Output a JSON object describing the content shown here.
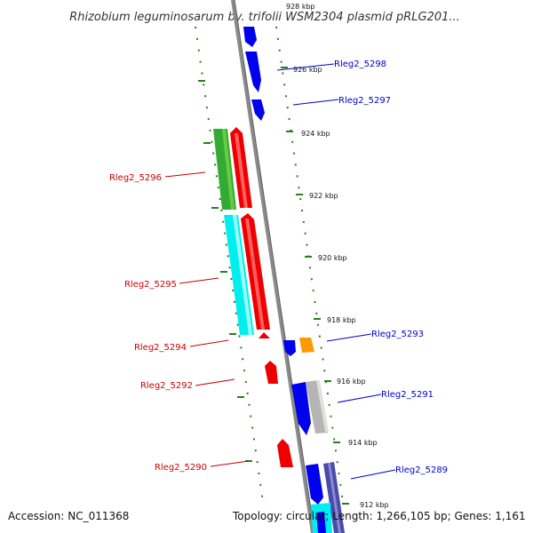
{
  "title": "Rhizobium leguminosarum bv. trifolii WSM2304 plasmid pRLG201...",
  "accession": "Accession: NC_011368",
  "summary": "Topology: circular; Length: 1,266,105 bp; Genes: 1,161",
  "colors": {
    "backbone": "#8a8a8a",
    "kbp_tick": "#2a7f1a",
    "reverse_label": "#cc0000",
    "forward_label": "#0000cc",
    "cds_red": "#ee0000",
    "cds_blue": "#0000ee",
    "cds_green": "#33aa33",
    "cds_cyan": "#00eeee",
    "cds_orange": "#ff9900",
    "cds_gray": "#b5b5b5",
    "cds_navy": "#4a4aa8"
  },
  "kbp_ticks": [
    "928 kbp",
    "926 kbp",
    "924 kbp",
    "922 kbp",
    "920 kbp",
    "918 kbp",
    "916 kbp",
    "914 kbp",
    "912 kbp"
  ],
  "forward_genes": [
    "Rleg2_5298",
    "Rleg2_5297",
    "Rleg2_5293",
    "Rleg2_5291",
    "Rleg2_5289"
  ],
  "reverse_genes": [
    "Rleg2_5296",
    "Rleg2_5295",
    "Rleg2_5294",
    "Rleg2_5292",
    "Rleg2_5290"
  ]
}
